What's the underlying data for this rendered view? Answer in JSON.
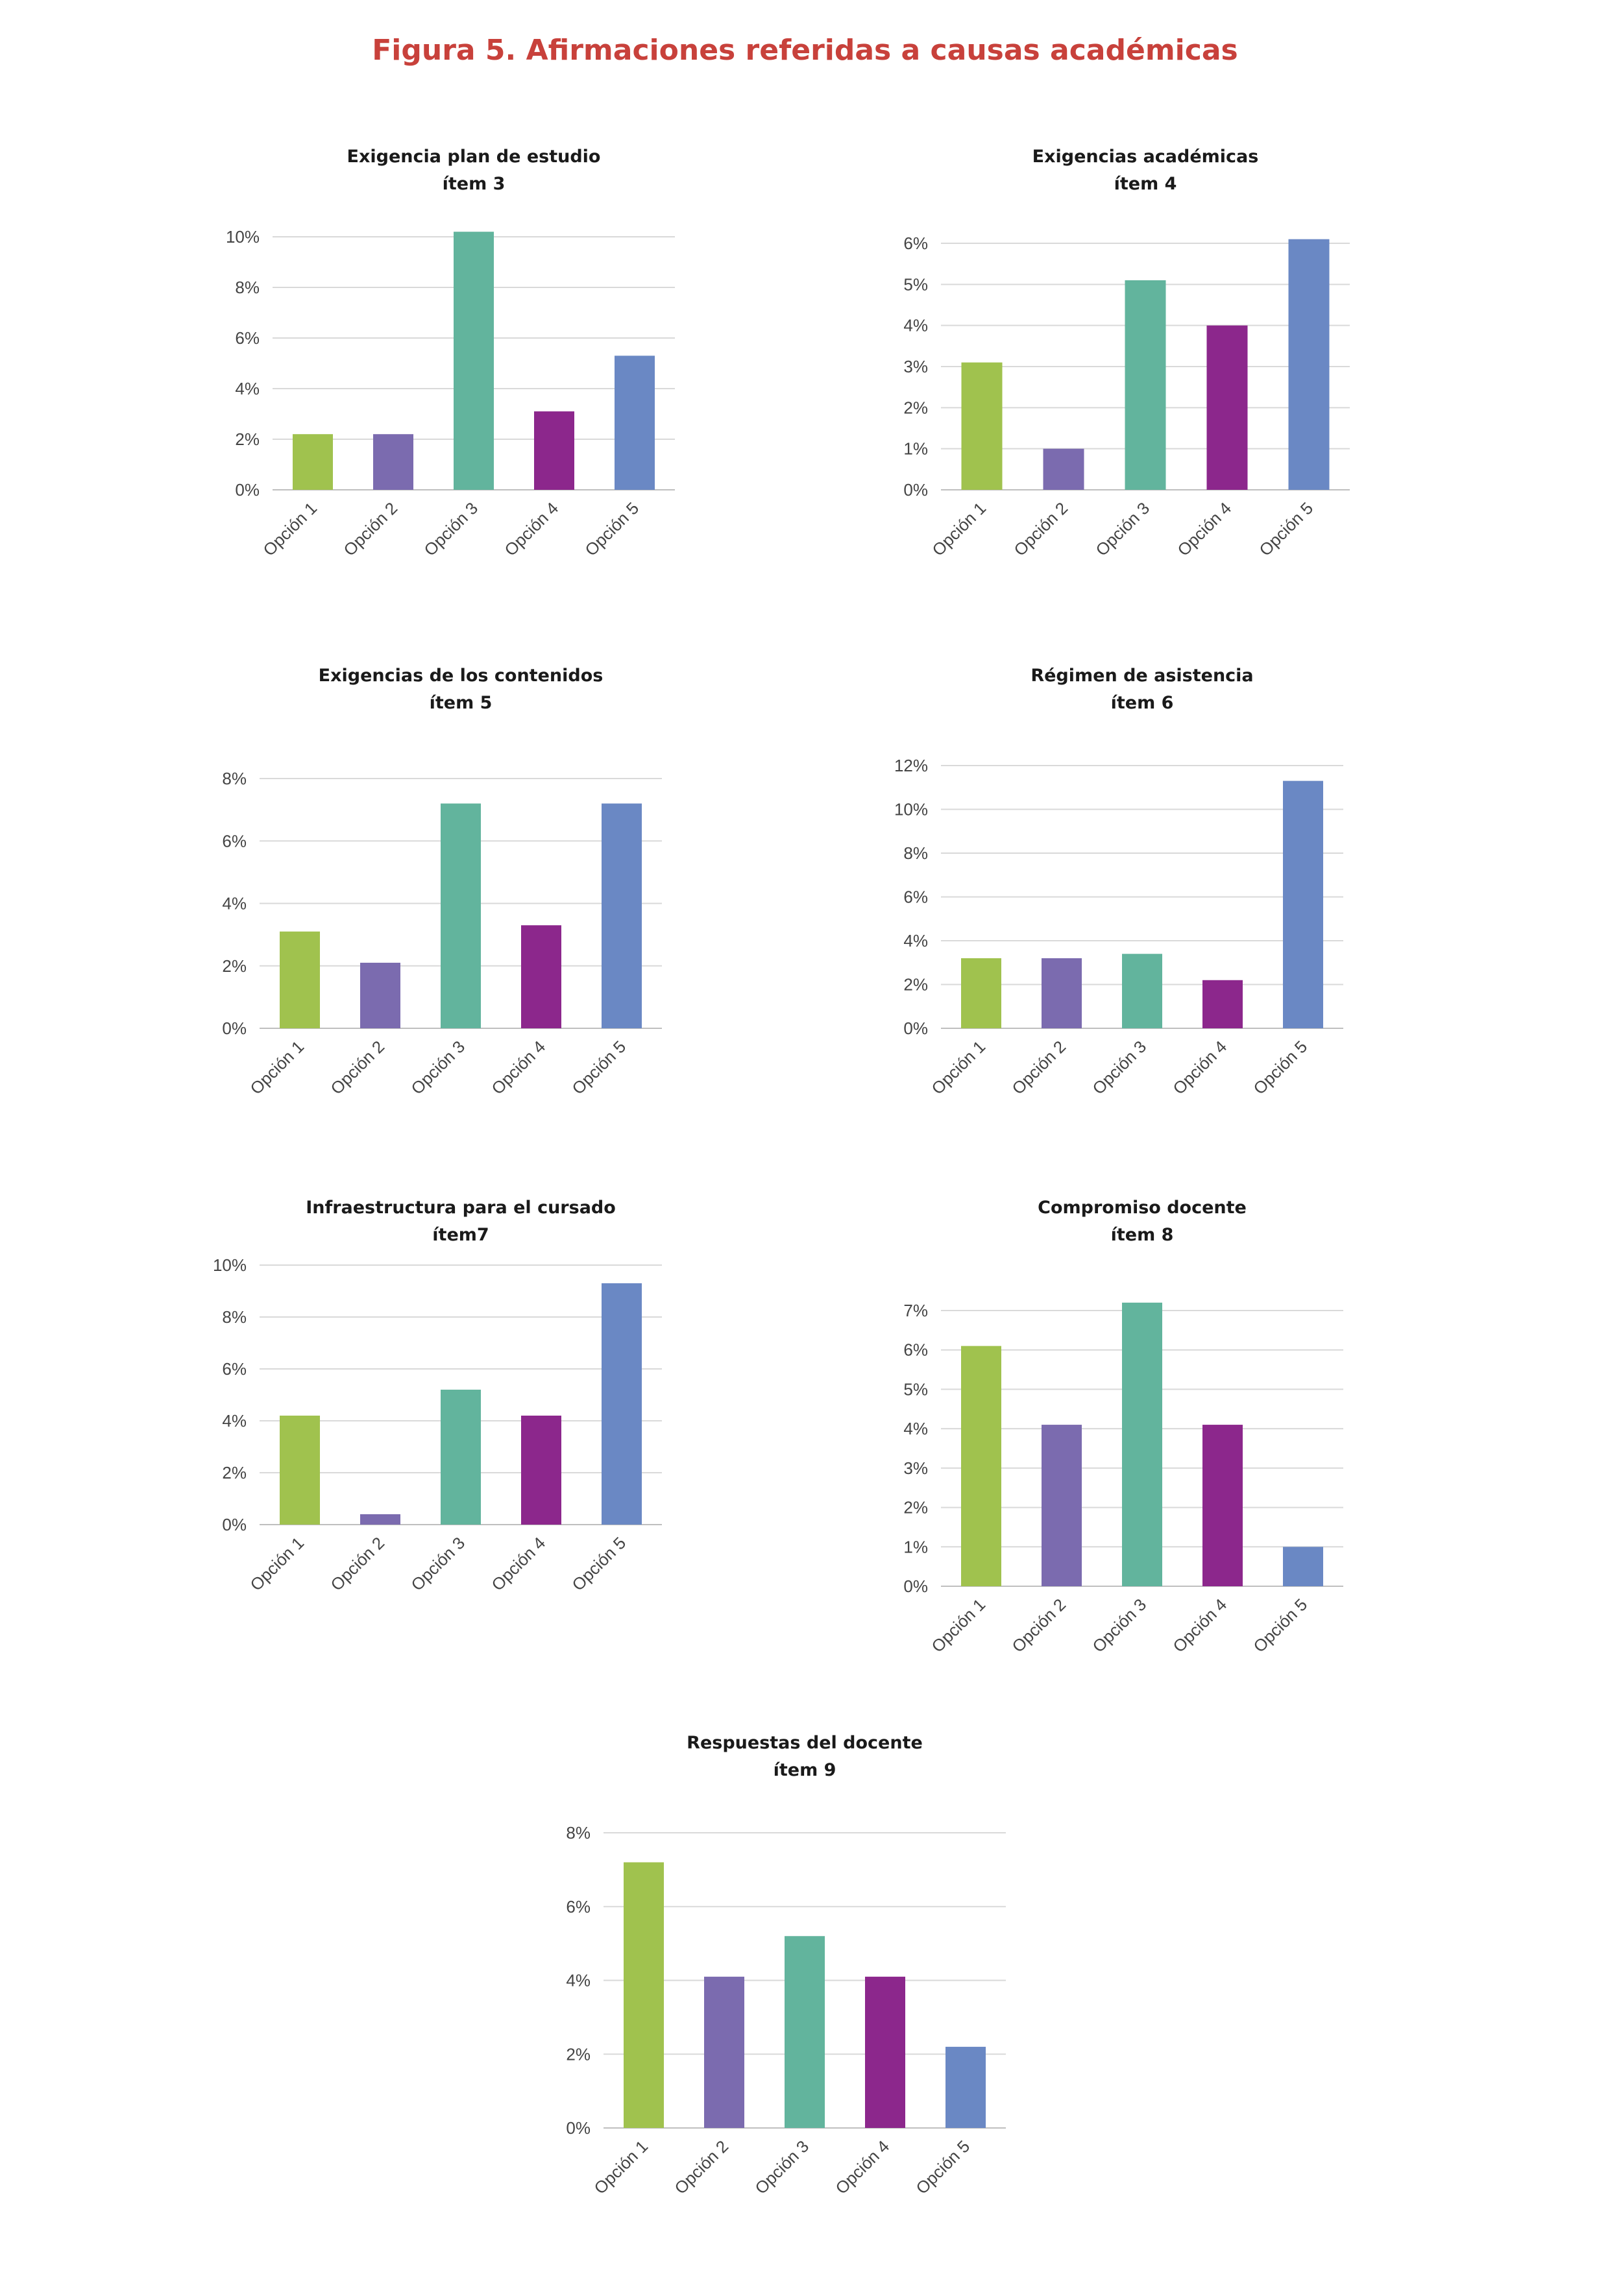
{
  "figure_title": "Figura 5. Afirmaciones referidas a causas académicas",
  "colors": {
    "title": "#c8413b",
    "series": [
      "#a0c24e",
      "#7b6baf",
      "#62b49d",
      "#8c278c",
      "#6a88c4"
    ]
  },
  "chart_data": [
    {
      "type": "bar",
      "title": [
        "Exigencia plan de estudio",
        "ítem 3"
      ],
      "categories": [
        "Opción 1",
        "Opción 2",
        "Opción 3",
        "Opción 4",
        "Opción 5"
      ],
      "values": [
        2.2,
        2.2,
        10.2,
        3.1,
        5.3
      ],
      "yticks": [
        0,
        2,
        4,
        6,
        8,
        10
      ],
      "tick_labels": [
        "0%",
        "2%",
        "4%",
        "6%",
        "8%",
        "10%"
      ],
      "ylim": [
        0,
        10
      ]
    },
    {
      "type": "bar",
      "title": [
        "Exigencias académicas",
        "ítem 4"
      ],
      "categories": [
        "Opción 1",
        "Opción 2",
        "Opción 3",
        "Opción 4",
        "Opción 5"
      ],
      "values": [
        3.1,
        1.0,
        5.1,
        4.0,
        6.1
      ],
      "yticks": [
        0,
        1,
        2,
        3,
        4,
        5,
        6
      ],
      "tick_labels": [
        "0%",
        "1%",
        "2%",
        "3%",
        "4%",
        "5%",
        "6%"
      ],
      "ylim": [
        0,
        6
      ]
    },
    {
      "type": "bar",
      "title": [
        "Exigencias de los contenidos",
        "ítem 5"
      ],
      "categories": [
        "Opción 1",
        "Opción 2",
        "Opción 3",
        "Opción 4",
        "Opción 5"
      ],
      "values": [
        3.1,
        2.1,
        7.2,
        3.3,
        7.2
      ],
      "yticks": [
        0,
        2,
        4,
        6,
        8
      ],
      "tick_labels": [
        "0%",
        "2%",
        "4%",
        "6%",
        "8%"
      ],
      "ylim": [
        0,
        8
      ]
    },
    {
      "type": "bar",
      "title": [
        "Régimen de asistencia",
        "ítem 6"
      ],
      "categories": [
        "Opción 1",
        "Opción 2",
        "Opción 3",
        "Opción 4",
        "Opción 5"
      ],
      "values": [
        3.2,
        3.2,
        3.4,
        2.2,
        11.3
      ],
      "yticks": [
        0,
        2,
        4,
        6,
        8,
        10,
        12
      ],
      "tick_labels": [
        "0%",
        "2%",
        "4%",
        "6%",
        "8%",
        "10%",
        "12%"
      ],
      "ylim": [
        0,
        12
      ]
    },
    {
      "type": "bar",
      "title": [
        "Infraestructura para el cursado",
        "ítem7"
      ],
      "categories": [
        "Opción 1",
        "Opción 2",
        "Opción 3",
        "Opción 4",
        "Opción 5"
      ],
      "values": [
        4.2,
        0.4,
        5.2,
        4.2,
        9.3
      ],
      "yticks": [
        0,
        2,
        4,
        6,
        8,
        10
      ],
      "tick_labels": [
        "0%",
        "2%",
        "4%",
        "6%",
        "8%",
        "10%"
      ],
      "ylim": [
        0,
        10
      ]
    },
    {
      "type": "bar",
      "title": [
        "Compromiso docente",
        "ítem 8"
      ],
      "categories": [
        "Opción 1",
        "Opción 2",
        "Opción 3",
        "Opción 4",
        "Opción 5"
      ],
      "values": [
        6.1,
        4.1,
        7.2,
        4.1,
        1.0
      ],
      "yticks": [
        0,
        1,
        2,
        3,
        4,
        5,
        6,
        7
      ],
      "tick_labels": [
        "0%",
        "1%",
        "2%",
        "3%",
        "4%",
        "5%",
        "6%",
        "7%"
      ],
      "ylim": [
        0,
        7
      ]
    },
    {
      "type": "bar",
      "title": [
        "Respuestas del docente",
        "ítem 9"
      ],
      "categories": [
        "Opción 1",
        "Opción 2",
        "Opción 3",
        "Opción 4",
        "Opción 5"
      ],
      "values": [
        7.2,
        4.1,
        5.2,
        4.1,
        2.2
      ],
      "yticks": [
        0,
        2,
        4,
        6,
        8
      ],
      "tick_labels": [
        "0%",
        "2%",
        "4%",
        "6%",
        "8%"
      ],
      "ylim": [
        0,
        8
      ]
    }
  ]
}
